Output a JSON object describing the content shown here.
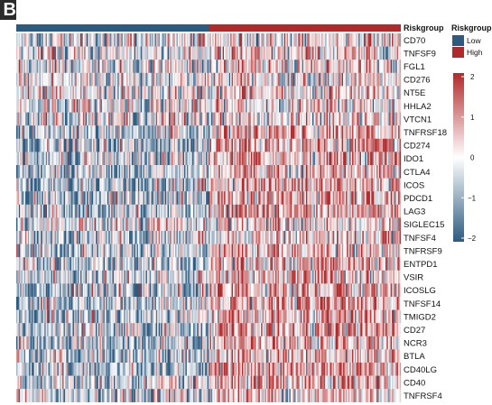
{
  "panel_letter": "B",
  "chart_data": {
    "type": "heatmap",
    "rows": [
      "CD70",
      "TNFSF9",
      "FGL1",
      "CD276",
      "NT5E",
      "HHLA2",
      "VTCN1",
      "TNFRSF18",
      "CD274",
      "IDO1",
      "CTLA4",
      "ICOS",
      "PDCD1",
      "LAG3",
      "SIGLEC15",
      "TNFSF4",
      "TNFRSF9",
      "ENTPD1",
      "VSIR",
      "ICOSLG",
      "TNFSF14",
      "TMIGD2",
      "CD27",
      "NCR3",
      "BTLA",
      "CD40LG",
      "CD40",
      "TNFRSF4"
    ],
    "annotation": {
      "row_label": "Riskgroup",
      "legend_title": "Riskgroup",
      "groups": [
        {
          "name": "Low",
          "color": "#2d5a7f",
          "fraction": 0.5
        },
        {
          "name": "High",
          "color": "#b02a2c",
          "fraction": 0.5
        }
      ]
    },
    "color_scale": {
      "min": -2,
      "max": 2,
      "ticks": [
        2,
        1,
        0,
        -1,
        -2
      ],
      "low_color": "#2d5a7f",
      "mid_color": "#ffffff",
      "high_color": "#b02a2c"
    },
    "mean_z_by_group": {
      "note_rows_order": "same as rows",
      "Low": [
        -0.1,
        -0.1,
        -0.05,
        -0.05,
        -0.1,
        -0.05,
        -0.05,
        -0.3,
        -0.35,
        -0.35,
        -0.3,
        -0.35,
        -0.35,
        -0.35,
        -0.1,
        -0.2,
        -0.3,
        -0.35,
        -0.3,
        -0.35,
        -0.35,
        -0.3,
        -0.35,
        -0.3,
        -0.3,
        -0.35,
        -0.25,
        -0.2
      ],
      "High": [
        0.1,
        0.1,
        0.05,
        0.05,
        0.1,
        0.05,
        0.05,
        0.3,
        0.35,
        0.35,
        0.3,
        0.35,
        0.35,
        0.35,
        0.1,
        0.2,
        0.3,
        0.35,
        0.3,
        0.35,
        0.35,
        0.3,
        0.35,
        0.3,
        0.3,
        0.35,
        0.25,
        0.2
      ]
    },
    "n_columns": 300
  }
}
